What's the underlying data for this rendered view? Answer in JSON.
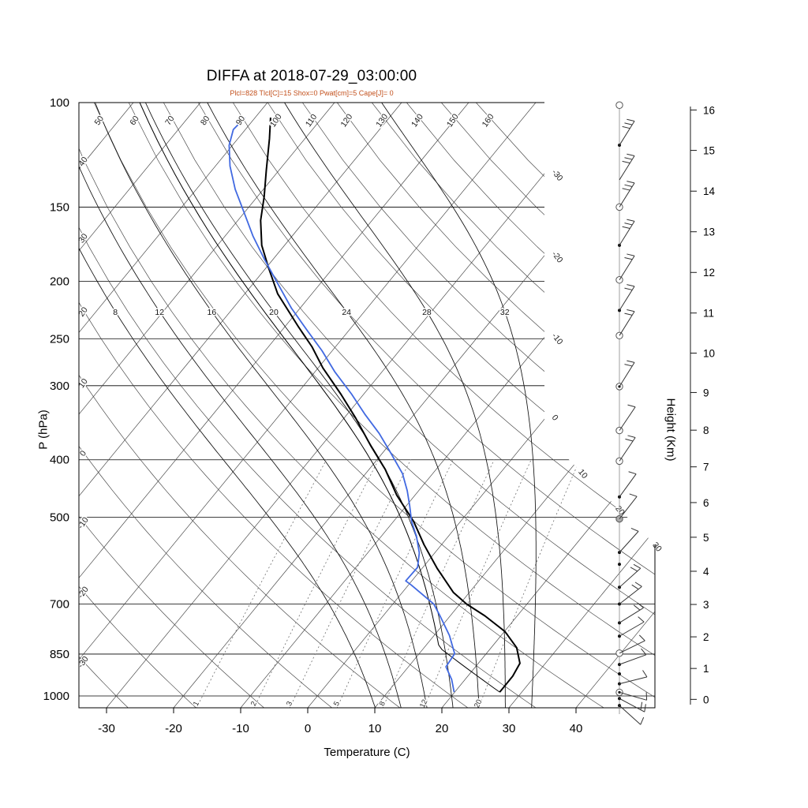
{
  "title": "DIFFA at 2018-07-29_03:00:00",
  "subtitle": "Plcl=828 Tlcl[C]=15 Shox=0 Pwat[cm]=5 Cape[J]= 0",
  "axes": {
    "left_label": "P (hPa)",
    "bottom_label": "Temperature (C)",
    "right_label": "Height (Km)",
    "pressure_ticks": [
      100,
      150,
      200,
      250,
      300,
      400,
      500,
      700,
      850,
      1000
    ],
    "temp_ticks": [
      -30,
      -20,
      -10,
      0,
      10,
      20,
      30,
      40
    ],
    "height_ticks": [
      0,
      1,
      2,
      3,
      4,
      5,
      6,
      7,
      8,
      9,
      10,
      11,
      12,
      13,
      14,
      15,
      16
    ]
  },
  "chart_data": {
    "type": "skewt_log_p_sounding",
    "station": "DIFFA",
    "datetime_label": "2018-07-29_03:00:00",
    "indices": {
      "Plcl": 828,
      "Tlcl_C": 15,
      "Shox": 0,
      "Pwat_cm": 5,
      "Cape_J": 0
    },
    "isobars": [
      150,
      200,
      250,
      300,
      400,
      500,
      700,
      850,
      1000
    ],
    "isotherm_range": {
      "min": -110,
      "max": 40,
      "step": 10
    },
    "dry_adiabat_range": {
      "min": -40,
      "max": 160,
      "step": 10
    },
    "dry_adiabat_top_labels": [
      50,
      60,
      70,
      80,
      90,
      100,
      110,
      120,
      130,
      140,
      150,
      160
    ],
    "dry_adiabat_left_labels": [
      40,
      30,
      20,
      10,
      0,
      -10,
      -20,
      -30
    ],
    "right_isotherm_labels": [
      -30,
      -20,
      -10,
      0,
      10,
      20,
      30
    ],
    "moist_adiabat_labels": [
      8,
      12,
      16,
      20,
      24,
      28,
      32
    ],
    "mixing_ratio_labels": [
      1,
      2,
      3,
      5,
      8,
      12,
      20
    ],
    "temperature_profile": [
      [
        985,
        26.7
      ],
      [
        926,
        26.7
      ],
      [
        881,
        26.2
      ],
      [
        829,
        23.8
      ],
      [
        779,
        20.1
      ],
      [
        733,
        15.2
      ],
      [
        700,
        11.0
      ],
      [
        669,
        7.6
      ],
      [
        610,
        2.3
      ],
      [
        556,
        -2.6
      ],
      [
        508,
        -7.0
      ],
      [
        459,
        -12.7
      ],
      [
        415,
        -17.6
      ],
      [
        379,
        -22.6
      ],
      [
        340,
        -28.3
      ],
      [
        310,
        -33.4
      ],
      [
        280,
        -39.3
      ],
      [
        258,
        -43.5
      ],
      [
        239,
        -47.9
      ],
      [
        210,
        -55.1
      ],
      [
        190,
        -59.6
      ],
      [
        174,
        -63.4
      ],
      [
        158,
        -66.6
      ],
      [
        144,
        -69.0
      ],
      [
        130,
        -71.9
      ],
      [
        115,
        -75.3
      ],
      [
        106,
        -77.7
      ]
    ],
    "dewpoint_profile": [
      [
        985,
        19.9
      ],
      [
        938,
        18.0
      ],
      [
        893,
        15.6
      ],
      [
        849,
        15.3
      ],
      [
        791,
        12.3
      ],
      [
        733,
        8.5
      ],
      [
        700,
        6.1
      ],
      [
        650,
        0.4
      ],
      [
        640,
        -0.9
      ],
      [
        607,
        -0.8
      ],
      [
        574,
        -2.3
      ],
      [
        539,
        -4.7
      ],
      [
        508,
        -7.3
      ],
      [
        478,
        -9.5
      ],
      [
        451,
        -11.7
      ],
      [
        422,
        -14.5
      ],
      [
        390,
        -18.7
      ],
      [
        361,
        -22.9
      ],
      [
        335,
        -27.4
      ],
      [
        310,
        -31.8
      ],
      [
        284,
        -37.1
      ],
      [
        262,
        -41.5
      ],
      [
        243,
        -46.0
      ],
      [
        222,
        -51.3
      ],
      [
        202,
        -56.3
      ],
      [
        184,
        -61.2
      ],
      [
        168,
        -65.8
      ],
      [
        153,
        -70.1
      ],
      [
        140,
        -74.2
      ],
      [
        128,
        -77.8
      ],
      [
        118,
        -80.5
      ],
      [
        111,
        -81.8
      ],
      [
        106,
        -81.5
      ]
    ],
    "parcel": {
      "surface_p": 985,
      "surface_T": 26.7,
      "lcl_p": 828
    },
    "wind_levels": [
      {
        "p": 101,
        "marker": "circle",
        "feathers": 0,
        "angle": -58
      },
      {
        "p": 118,
        "marker": "dot",
        "feathers": 3,
        "angle": -58
      },
      {
        "p": 135,
        "marker": "none",
        "feathers": 3,
        "angle": -58
      },
      {
        "p": 150,
        "marker": "circle",
        "feathers": 3,
        "angle": -58
      },
      {
        "p": 174,
        "marker": "dot",
        "feathers": 3,
        "angle": -58
      },
      {
        "p": 199,
        "marker": "circle",
        "feathers": 2,
        "angle": -58
      },
      {
        "p": 224,
        "marker": "dot",
        "feathers": 2,
        "angle": -58
      },
      {
        "p": 247,
        "marker": "circle",
        "feathers": 2,
        "angle": -58
      },
      {
        "p": 301,
        "marker": "circle-dot",
        "feathers": 2,
        "angle": -58
      },
      {
        "p": 357,
        "marker": "circle",
        "feathers": 1,
        "angle": -56
      },
      {
        "p": 402,
        "marker": "circle",
        "feathers": 2,
        "angle": -56
      },
      {
        "p": 462,
        "marker": "dot",
        "feathers": 1,
        "angle": -54
      },
      {
        "p": 503,
        "marker": "circle-half",
        "feathers": 1,
        "angle": -52
      },
      {
        "p": 573,
        "marker": "dot",
        "feathers": 1,
        "angle": -48
      },
      {
        "p": 600,
        "marker": "dot",
        "feathers": 0,
        "angle": 0
      },
      {
        "p": 656,
        "marker": "dot",
        "feathers": 2,
        "angle": -42
      },
      {
        "p": 700,
        "marker": "dot",
        "feathers": 2,
        "angle": -38
      },
      {
        "p": 753,
        "marker": "dot",
        "feathers": 2,
        "angle": -32
      },
      {
        "p": 793,
        "marker": "dot",
        "feathers": 1,
        "angle": -30
      },
      {
        "p": 847,
        "marker": "circle",
        "feathers": 1,
        "angle": -26
      },
      {
        "p": 885,
        "marker": "dot",
        "feathers": 1,
        "angle": -20
      },
      {
        "p": 918,
        "marker": "dot",
        "feathers": 0,
        "angle": 0
      },
      {
        "p": 954,
        "marker": "dot",
        "feathers": 1,
        "angle": -14
      },
      {
        "p": 986,
        "marker": "circle-dot",
        "feathers": 1,
        "angle": 16
      },
      {
        "p": 1010,
        "marker": "dot",
        "feathers": 2,
        "angle": 28
      },
      {
        "p": 1038,
        "marker": "dot",
        "feathers": 1,
        "angle": 42
      }
    ],
    "colors": {
      "temperature": "#000000",
      "dewpoint": "#4169E1",
      "parcel": "#000000",
      "subtitle": "#c3511d",
      "grid": "#404040",
      "moist": "#101010",
      "mixing": "#707070"
    }
  }
}
